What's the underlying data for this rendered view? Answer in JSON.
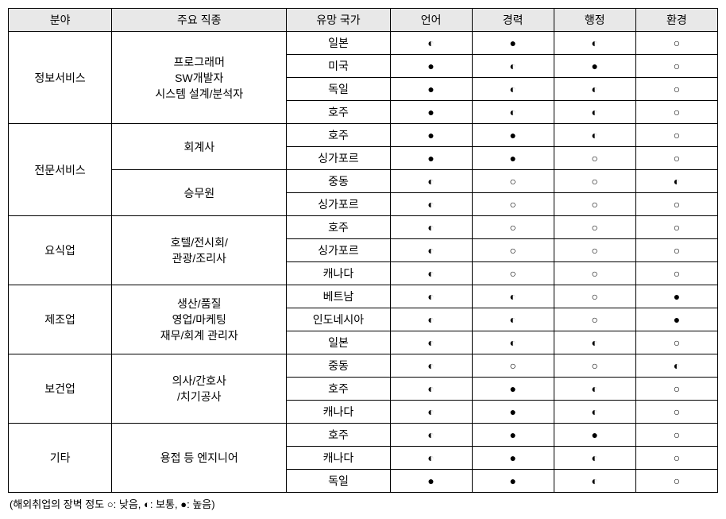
{
  "symbols": {
    "low": "○",
    "mid": "◐",
    "high": "●"
  },
  "headers": [
    "분야",
    "주요 직종",
    "유망 국가",
    "언어",
    "경력",
    "행정",
    "환경"
  ],
  "legend": "(해외취업의 장벽 정도 ○: 낮음, ◐: 보통, ●: 높음)",
  "groups": [
    {
      "field": "정보서비스",
      "job": "프로그래머<br>SW개발자<br>시스템 설계/분석자",
      "rows": [
        {
          "country": "일본",
          "v": [
            "mid",
            "high",
            "mid",
            "low"
          ]
        },
        {
          "country": "미국",
          "v": [
            "high",
            "mid",
            "high",
            "low"
          ]
        },
        {
          "country": "독일",
          "v": [
            "high",
            "mid",
            "mid",
            "low"
          ]
        },
        {
          "country": "호주",
          "v": [
            "high",
            "mid",
            "mid",
            "low"
          ]
        }
      ]
    },
    {
      "field": "전문서비스",
      "subs": [
        {
          "job": "회계사",
          "rows": [
            {
              "country": "호주",
              "v": [
                "high",
                "high",
                "mid",
                "low"
              ]
            },
            {
              "country": "싱가포르",
              "v": [
                "high",
                "high",
                "low",
                "low"
              ]
            }
          ]
        },
        {
          "job": "승무원",
          "rows": [
            {
              "country": "중동",
              "v": [
                "mid",
                "low",
                "low",
                "mid"
              ]
            },
            {
              "country": "싱가포르",
              "v": [
                "mid",
                "low",
                "low",
                "low"
              ]
            }
          ]
        }
      ]
    },
    {
      "field": "요식업",
      "job": "호텔/전시회/<br>관광/조리사",
      "rows": [
        {
          "country": "호주",
          "v": [
            "mid",
            "low",
            "low",
            "low"
          ]
        },
        {
          "country": "싱가포르",
          "v": [
            "mid",
            "low",
            "low",
            "low"
          ]
        },
        {
          "country": "캐나다",
          "v": [
            "mid",
            "low",
            "low",
            "low"
          ]
        }
      ]
    },
    {
      "field": "제조업",
      "job": "생산/품질<br>영업/마케팅<br>재무/회계 관리자",
      "rows": [
        {
          "country": "베트남",
          "v": [
            "mid",
            "mid",
            "low",
            "high"
          ]
        },
        {
          "country": "인도네시아",
          "v": [
            "mid",
            "mid",
            "low",
            "high"
          ]
        },
        {
          "country": "일본",
          "v": [
            "mid",
            "mid",
            "mid",
            "low"
          ]
        }
      ]
    },
    {
      "field": "보건업",
      "job": "의사/간호사<br>/치기공사",
      "rows": [
        {
          "country": "중동",
          "v": [
            "mid",
            "low",
            "low",
            "mid"
          ]
        },
        {
          "country": "호주",
          "v": [
            "mid",
            "high",
            "mid",
            "low"
          ]
        },
        {
          "country": "캐나다",
          "v": [
            "mid",
            "high",
            "mid",
            "low"
          ]
        }
      ]
    },
    {
      "field": "기타",
      "job": "용접 등 엔지니어",
      "rows": [
        {
          "country": "호주",
          "v": [
            "mid",
            "high",
            "high",
            "low"
          ]
        },
        {
          "country": "캐나다",
          "v": [
            "mid",
            "high",
            "mid",
            "low"
          ]
        },
        {
          "country": "독일",
          "v": [
            "high",
            "high",
            "mid",
            "low"
          ]
        }
      ]
    }
  ]
}
